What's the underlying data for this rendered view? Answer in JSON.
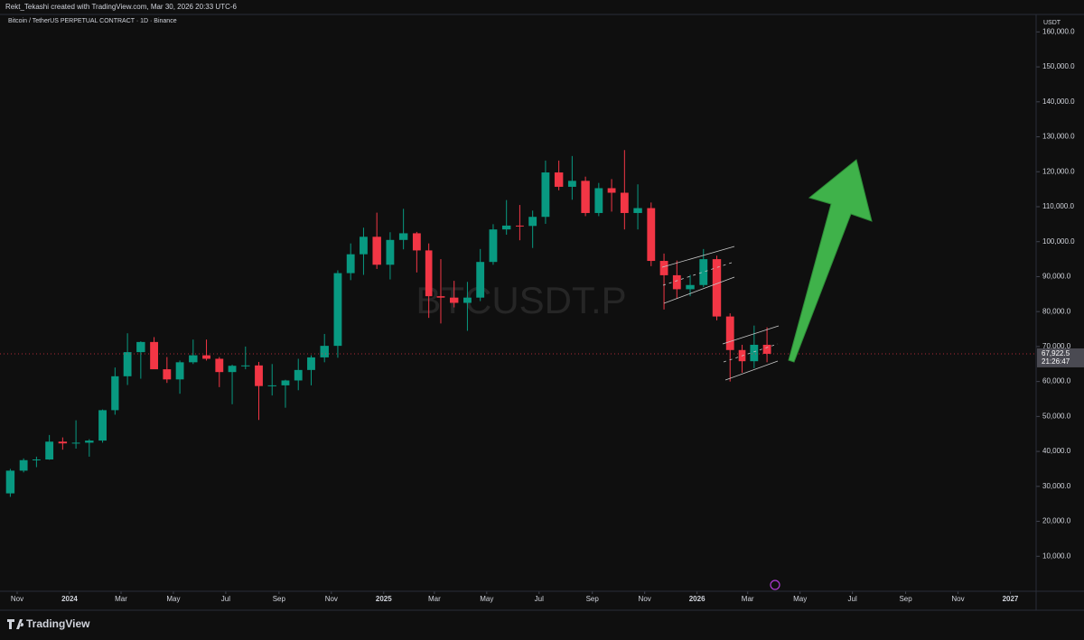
{
  "chart_data": {
    "type": "candlestick",
    "header": "Rekt_Tekashi created with TradingView.com, Mar 30, 2026 20:33 UTC-6",
    "title": "Bitcoin / TetherUS PERPETUAL CONTRACT · 1D · Binance",
    "watermark": "BTCUSDT.P",
    "unit": "USDT",
    "brand": "TradingView",
    "countdown": "21:26:47",
    "last_price_label": "67,922.5",
    "up_color": "#089981",
    "down_color": "#f23645",
    "grid": false,
    "xlim": [
      "2023-10-12",
      "2027-01-31"
    ],
    "ylim": [
      0,
      165000
    ],
    "x": [
      "2023-10-16",
      "2023-11-01",
      "2023-11-16",
      "2023-12-01",
      "2023-12-16",
      "2024-01-01",
      "2024-01-16",
      "2024-02-01",
      "2024-02-16",
      "2024-03-01",
      "2024-03-16",
      "2024-04-01",
      "2024-04-16",
      "2024-05-01",
      "2024-05-16",
      "2024-06-01",
      "2024-06-16",
      "2024-07-01",
      "2024-07-16",
      "2024-08-01",
      "2024-08-16",
      "2024-09-01",
      "2024-09-16",
      "2024-10-01",
      "2024-10-16",
      "2024-11-01",
      "2024-11-16",
      "2024-12-01",
      "2024-12-16",
      "2025-01-01",
      "2025-01-16",
      "2025-02-01",
      "2025-02-16",
      "2025-03-01",
      "2025-03-16",
      "2025-04-01",
      "2025-04-16",
      "2025-05-01",
      "2025-05-16",
      "2025-06-01",
      "2025-06-16",
      "2025-07-01",
      "2025-07-16",
      "2025-08-01",
      "2025-08-16",
      "2025-09-01",
      "2025-09-16",
      "2025-10-01",
      "2025-10-16",
      "2025-11-01",
      "2025-11-16",
      "2025-12-01",
      "2025-12-16",
      "2026-01-01",
      "2026-01-16",
      "2026-02-01",
      "2026-02-16",
      "2026-03-01",
      "2026-03-16"
    ],
    "open": [
      28000,
      34500,
      37500,
      37700,
      42800,
      42300,
      42500,
      43100,
      51800,
      61500,
      68400,
      71300,
      63500,
      60600,
      65500,
      67500,
      66500,
      62700,
      64500,
      64600,
      58700,
      58900,
      60300,
      63300,
      66900,
      70200,
      91000,
      96400,
      101400,
      93400,
      100500,
      102400,
      97500,
      84400,
      84000,
      82500,
      84000,
      94200,
      103500,
      104600,
      104500,
      107100,
      119800,
      115700,
      117400,
      108200,
      115300,
      114000,
      108200,
      109600,
      94500,
      90400,
      86400,
      87600,
      95000,
      78600,
      69000,
      65800,
      70500
    ],
    "high": [
      35000,
      38000,
      38500,
      44700,
      44000,
      48900,
      43500,
      52000,
      64000,
      73800,
      71500,
      72700,
      67000,
      66000,
      72000,
      72000,
      67000,
      64800,
      70000,
      65600,
      65000,
      60500,
      66500,
      67500,
      73600,
      91800,
      99500,
      104000,
      108300,
      102700,
      109400,
      102800,
      99500,
      95000,
      88800,
      88500,
      97900,
      105000,
      111900,
      110500,
      108900,
      123200,
      123200,
      124500,
      118600,
      116800,
      117900,
      126200,
      116400,
      111200,
      96600,
      94600,
      90500,
      97900,
      96000,
      79500,
      70500,
      76000,
      75500
    ],
    "low": [
      27000,
      34000,
      35500,
      37600,
      40500,
      40800,
      38500,
      42500,
      50500,
      59000,
      60800,
      64500,
      59600,
      56500,
      65000,
      66000,
      58400,
      53500,
      63500,
      49000,
      56000,
      52500,
      57500,
      58900,
      65500,
      66800,
      89000,
      90500,
      92200,
      89200,
      97800,
      91200,
      78200,
      76600,
      81200,
      74500,
      83000,
      93400,
      102000,
      100400,
      98200,
      105100,
      114700,
      112000,
      107300,
      107300,
      108600,
      103500,
      103500,
      93000,
      80600,
      83800,
      84400,
      87000,
      77500,
      60000,
      62500,
      63800,
      65500
    ],
    "close": [
      34500,
      37500,
      37700,
      42800,
      42300,
      42500,
      43100,
      51800,
      61500,
      68400,
      71300,
      63500,
      60600,
      65500,
      67500,
      66500,
      62700,
      64500,
      64600,
      58700,
      58900,
      60300,
      63300,
      66900,
      70200,
      91000,
      96400,
      101400,
      93400,
      100500,
      102400,
      97500,
      84400,
      84000,
      82500,
      84000,
      94200,
      103500,
      104600,
      104500,
      107100,
      119800,
      115700,
      117400,
      108200,
      115300,
      114000,
      108200,
      109600,
      94500,
      90400,
      86400,
      87600,
      95000,
      78600,
      69000,
      65800,
      70500,
      67922.5
    ],
    "yticks": [
      {
        "value": 10000,
        "label": "10,000.0"
      },
      {
        "value": 20000,
        "label": "20,000.0"
      },
      {
        "value": 30000,
        "label": "30,000.0"
      },
      {
        "value": 40000,
        "label": "40,000.0"
      },
      {
        "value": 50000,
        "label": "50,000.0"
      },
      {
        "value": 60000,
        "label": "60,000.0"
      },
      {
        "value": 70000,
        "label": "70,000.0"
      },
      {
        "value": 80000,
        "label": "80,000.0"
      },
      {
        "value": 90000,
        "label": "90,000.0"
      },
      {
        "value": 100000,
        "label": "100,000.0"
      },
      {
        "value": 110000,
        "label": "110,000.0"
      },
      {
        "value": 120000,
        "label": "120,000.0"
      },
      {
        "value": 130000,
        "label": "130,000.0"
      },
      {
        "value": 140000,
        "label": "140,000.0"
      },
      {
        "value": 150000,
        "label": "150,000.0"
      },
      {
        "value": 160000,
        "label": "160,000.0"
      }
    ],
    "xticks": [
      {
        "value": "2023-11-01",
        "label": "Nov"
      },
      {
        "value": "2024-01-01",
        "label": "2024"
      },
      {
        "value": "2024-03-01",
        "label": "Mar"
      },
      {
        "value": "2024-05-01",
        "label": "May"
      },
      {
        "value": "2024-07-01",
        "label": "Jul"
      },
      {
        "value": "2024-09-01",
        "label": "Sep"
      },
      {
        "value": "2024-11-01",
        "label": "Nov"
      },
      {
        "value": "2025-01-01",
        "label": "2025"
      },
      {
        "value": "2025-03-01",
        "label": "Mar"
      },
      {
        "value": "2025-05-01",
        "label": "May"
      },
      {
        "value": "2025-07-01",
        "label": "Jul"
      },
      {
        "value": "2025-09-01",
        "label": "Sep"
      },
      {
        "value": "2025-11-01",
        "label": "Nov"
      },
      {
        "value": "2026-01-01",
        "label": "2026"
      },
      {
        "value": "2026-03-01",
        "label": "Mar"
      },
      {
        "value": "2026-05-01",
        "label": "May"
      },
      {
        "value": "2026-07-01",
        "label": "Jul"
      },
      {
        "value": "2026-09-01",
        "label": "Sep"
      },
      {
        "value": "2026-11-01",
        "label": "Nov"
      },
      {
        "value": "2027-01-01",
        "label": "2027"
      }
    ]
  }
}
